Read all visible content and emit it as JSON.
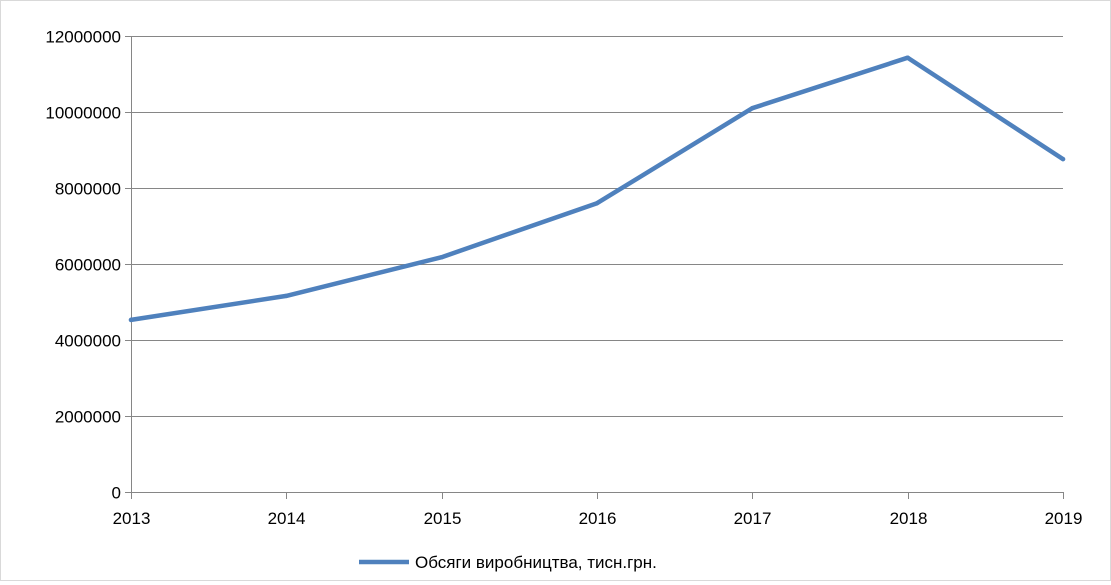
{
  "chart_data": {
    "type": "line",
    "title": "",
    "xlabel": "",
    "ylabel": "",
    "categories": [
      "2013",
      "2014",
      "2015",
      "2016",
      "2017",
      "2018",
      "2019"
    ],
    "series": [
      {
        "name": "Обсяги виробництва, тисн.грн.",
        "values": [
          4530000,
          5160000,
          6180000,
          7600000,
          10100000,
          11430000,
          8760000
        ],
        "color": "#4f81bd"
      }
    ],
    "ylim": [
      0,
      12000000
    ],
    "yticks": [
      0,
      2000000,
      4000000,
      6000000,
      8000000,
      10000000,
      12000000
    ],
    "ytick_labels": [
      "0",
      "2000000",
      "4000000",
      "6000000",
      "8000000",
      "10000000",
      "12000000"
    ],
    "grid": true,
    "legend_position": "bottom",
    "gridline_color": "#868686"
  }
}
